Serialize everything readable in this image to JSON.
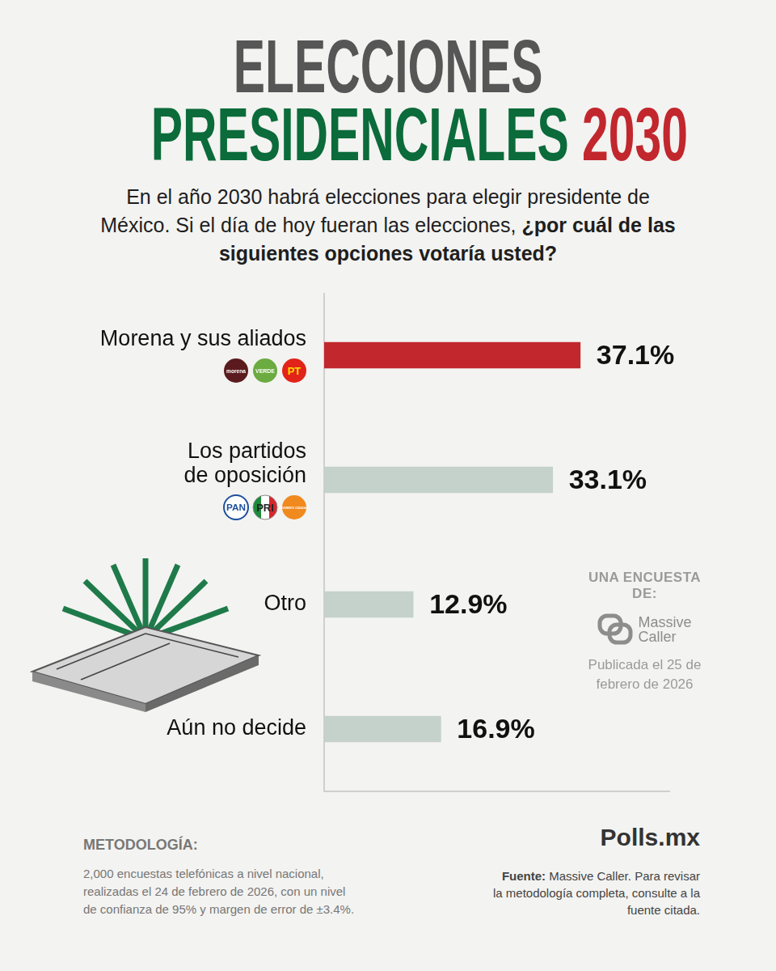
{
  "chart_data": {
    "type": "bar",
    "orientation": "horizontal",
    "title": [
      "ELECCIONES",
      "PRESIDENCIALES",
      "2030"
    ],
    "subtitle": [
      "En el año 2030 habrá elecciones para elegir presidente de México. Si el día de hoy fueran las elecciones,",
      "¿por cuál de las siguientes opciones votaría usted?"
    ],
    "categories": [
      "Morena y sus aliados",
      "Los partidos\nde oposición",
      "Otro",
      "Aún no decide"
    ],
    "values": [
      37.1,
      33.1,
      12.9,
      16.9
    ],
    "value_labels": [
      "37.1%",
      "33.1%",
      "12.9%",
      "16.9%"
    ],
    "colors": [
      "#c1272d",
      "#c5d1cb",
      "#c5d1cb",
      "#c5d1cb"
    ],
    "logos": {
      "Morena y sus aliados": [
        "morena",
        "VERDE",
        "PT"
      ],
      "Los partidos\nde oposición": [
        "PAN",
        "PRI",
        "MOVIMIENTO CIUDADANO"
      ]
    },
    "xlim": [
      0,
      50
    ],
    "grid": false,
    "data_labels": true,
    "tick_labels": "y"
  },
  "credits": {
    "heading": "UNA ENCUESTA DE:",
    "pollster": "Massive Caller",
    "published": "Publicada el 25 de febrero de 2026"
  },
  "methodology": {
    "heading": "METODOLOGÍA:",
    "text": "2,000 encuestas telefónicas a nivel nacional, realizadas el 24 de febrero de 2026, con un nivel de confianza de 95% y margen de error de ±3.4%."
  },
  "brand": "Polls.mx",
  "source": {
    "label": "Fuente:",
    "text": "Massive Caller. Para revisar la metodología completa, consulte a la fuente citada."
  }
}
